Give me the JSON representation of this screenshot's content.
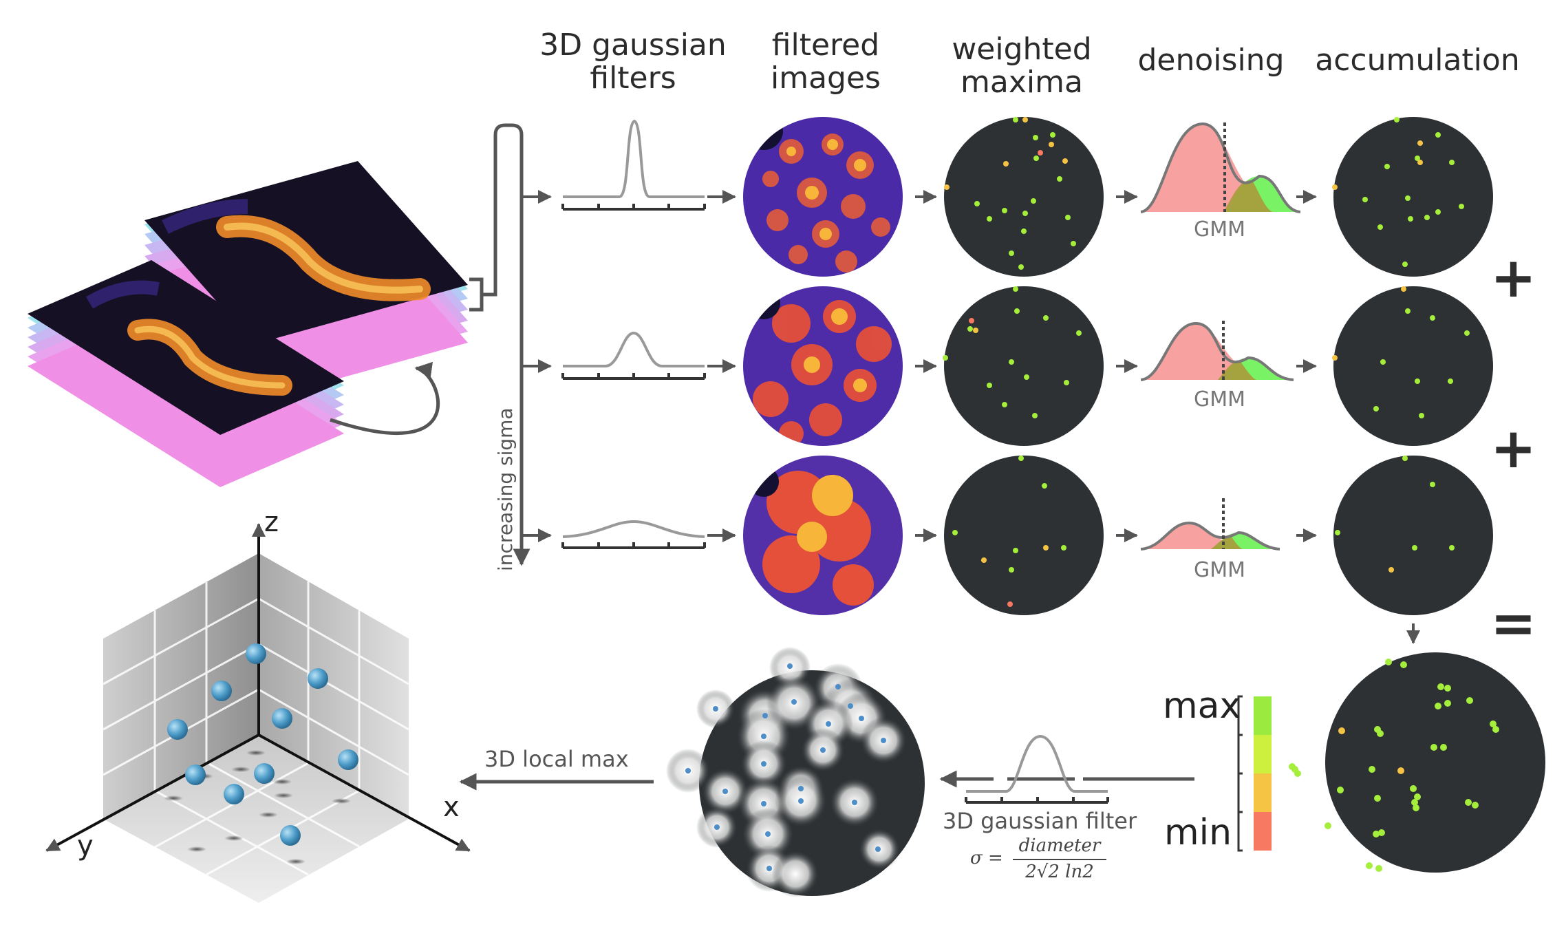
{
  "headers": {
    "gaussian_filters": "3D gaussian\nfilters",
    "filtered_images": "filtered\nimages",
    "weighted_maxima": "weighted\nmaxima",
    "denoising": "denoising",
    "accumulation": "accumulation"
  },
  "side_label": "increasing sigma",
  "gmm_label": "GMM",
  "operators": {
    "plus1": "+",
    "plus2": "+",
    "equals": "="
  },
  "bottom": {
    "local_max_label": "3D local max",
    "filter_label": "3D gaussian filter",
    "formula_lhs": "σ =",
    "formula_num": "diameter",
    "formula_den": "2√2 ln2",
    "scale_max": "max",
    "scale_min": "min"
  },
  "axes": {
    "z": "z",
    "y": "y",
    "x": "x"
  },
  "colors": {
    "dark_disk": "#2d3133",
    "pink": "#f7a2a0",
    "green": "#79f266",
    "olive": "#a89a3c",
    "ball": "#4d9cc9",
    "scale": [
      "#9bea3f",
      "#cdf03f",
      "#f5c444",
      "#f77962"
    ]
  }
}
